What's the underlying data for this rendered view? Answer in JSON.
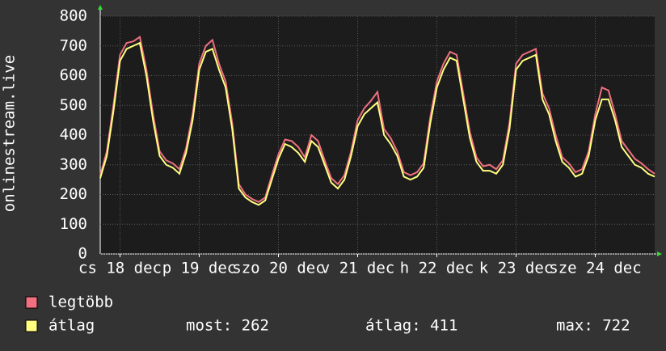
{
  "chart_data": {
    "type": "line",
    "ylabel": "onlinestream.live",
    "ylim": [
      0,
      800
    ],
    "yticks": [
      0,
      100,
      200,
      300,
      400,
      500,
      600,
      700,
      800
    ],
    "xlim": [
      0,
      84
    ],
    "xticks": [
      {
        "value": 3,
        "label": "cs 18 dec"
      },
      {
        "value": 15,
        "label": "p 19 dec"
      },
      {
        "value": 27,
        "label": "szo 20 dec"
      },
      {
        "value": 39,
        "label": "v 21 dec"
      },
      {
        "value": 51,
        "label": "h 22 dec"
      },
      {
        "value": 63,
        "label": "k 23 dec"
      },
      {
        "value": 75,
        "label": "sze 24 dec"
      }
    ],
    "grid": true,
    "series": [
      {
        "name": "legtöbb",
        "color": "#f07080",
        "values": [
          265,
          345,
          500,
          670,
          710,
          715,
          730,
          620,
          470,
          345,
          315,
          305,
          285,
          355,
          470,
          640,
          700,
          720,
          640,
          580,
          440,
          235,
          200,
          185,
          175,
          190,
          265,
          335,
          385,
          380,
          360,
          325,
          400,
          380,
          315,
          255,
          235,
          265,
          345,
          450,
          490,
          515,
          545,
          420,
          390,
          345,
          275,
          265,
          275,
          305,
          460,
          580,
          640,
          680,
          670,
          540,
          410,
          325,
          295,
          300,
          285,
          315,
          440,
          640,
          670,
          680,
          690,
          540,
          490,
          400,
          325,
          305,
          275,
          285,
          345,
          470,
          560,
          550,
          470,
          380,
          350,
          320,
          305,
          285,
          270
        ]
      },
      {
        "name": "átlag",
        "color": "#ffff80",
        "values": [
          255,
          330,
          480,
          650,
          690,
          700,
          710,
          600,
          450,
          330,
          300,
          290,
          270,
          340,
          450,
          620,
          680,
          690,
          620,
          560,
          420,
          220,
          190,
          175,
          165,
          180,
          250,
          320,
          370,
          360,
          340,
          310,
          380,
          360,
          300,
          240,
          220,
          250,
          330,
          430,
          470,
          490,
          510,
          400,
          370,
          330,
          260,
          250,
          260,
          290,
          440,
          560,
          620,
          660,
          650,
          520,
          390,
          310,
          280,
          280,
          270,
          300,
          420,
          620,
          650,
          660,
          670,
          520,
          470,
          380,
          310,
          290,
          260,
          270,
          330,
          450,
          520,
          520,
          450,
          360,
          330,
          300,
          290,
          270,
          260
        ]
      }
    ],
    "stats": [
      "most: 262",
      "átlag: 411",
      "max: 722"
    ]
  }
}
